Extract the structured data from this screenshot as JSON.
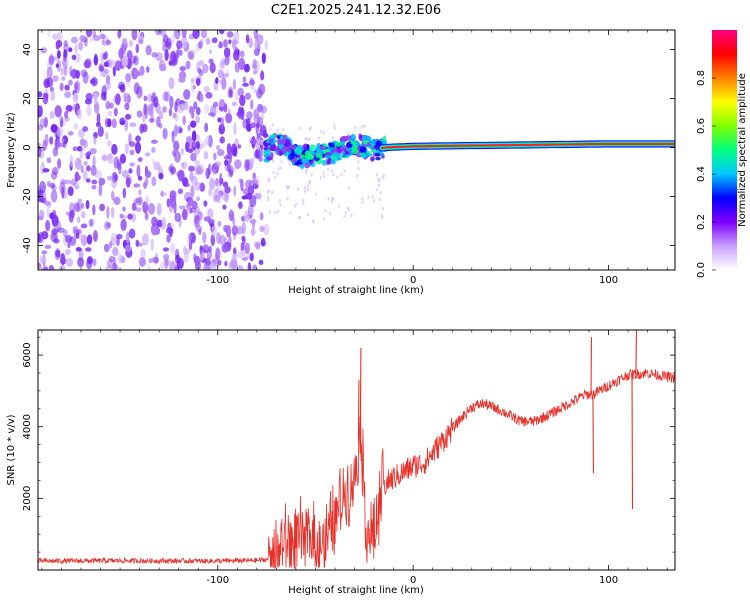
{
  "chart_data": [
    {
      "type": "heatmap",
      "title": "C2E1.2025.241.12.32.E06",
      "xlabel": "Height of straight line (km)",
      "ylabel": "Frequency (Hz)",
      "xlim": [
        -192,
        134
      ],
      "ylim": [
        -50,
        48
      ],
      "xticks": [
        -100,
        0,
        100
      ],
      "xtick_labels": [
        "-100",
        "0",
        "100"
      ],
      "yticks": [
        -40,
        -20,
        0,
        20,
        40
      ],
      "ytick_labels": [
        "-40",
        "-20",
        "0",
        "20",
        "40"
      ],
      "noise_region_x": [
        -192,
        -75
      ],
      "signal_center_freq": [
        {
          "x": -75,
          "freq": -2
        },
        {
          "x": -70,
          "freq": 2
        },
        {
          "x": -65,
          "freq": 0
        },
        {
          "x": -58,
          "freq": -4
        },
        {
          "x": -50,
          "freq": -3
        },
        {
          "x": -42,
          "freq": -2
        },
        {
          "x": -35,
          "freq": 0
        },
        {
          "x": -28,
          "freq": 1
        },
        {
          "x": -20,
          "freq": -1
        },
        {
          "x": -15,
          "freq": 0
        },
        {
          "x": 0,
          "freq": 0.5
        },
        {
          "x": 50,
          "freq": 1
        },
        {
          "x": 100,
          "freq": 1.5
        },
        {
          "x": 134,
          "freq": 1.5
        }
      ],
      "colorbar": {
        "label": "Normalized spectral amplitude",
        "range": [
          0,
          1
        ],
        "ticks": [
          0.0,
          0.2,
          0.4,
          0.6,
          0.8
        ],
        "tick_labels": [
          "0.0",
          "0.2",
          "0.4",
          "0.6",
          "0.8"
        ],
        "colors": [
          "#ffffff",
          "#c8a0ff",
          "#8000ff",
          "#0000ff",
          "#00c8ff",
          "#00ff80",
          "#80ff00",
          "#ffff00",
          "#ff8000",
          "#ff0000",
          "#ff0080"
        ]
      }
    },
    {
      "type": "line",
      "xlabel": "Height of straight line (km)",
      "ylabel": "SNR (10 * v/v)",
      "xlim": [
        -192,
        134
      ],
      "ylim": [
        0,
        6700
      ],
      "xticks": [
        -100,
        0,
        100
      ],
      "xtick_labels": [
        "-100",
        "0",
        "100"
      ],
      "yticks": [
        2000,
        4000,
        6000
      ],
      "ytick_labels": [
        "2000",
        "4000",
        "6000"
      ],
      "series": [
        {
          "name": "SNR",
          "color": "#e8302a",
          "points": [
            {
              "x": -192,
              "y": 250
            },
            {
              "x": -150,
              "y": 260
            },
            {
              "x": -100,
              "y": 250
            },
            {
              "x": -80,
              "y": 270
            },
            {
              "x": -73,
              "y": 300
            },
            {
              "x": -68,
              "y": 700
            },
            {
              "x": -60,
              "y": 800
            },
            {
              "x": -52,
              "y": 900
            },
            {
              "x": -45,
              "y": 700
            },
            {
              "x": -40,
              "y": 1400
            },
            {
              "x": -35,
              "y": 2200
            },
            {
              "x": -30,
              "y": 2500
            },
            {
              "x": -27,
              "y": 4200
            },
            {
              "x": -24,
              "y": 1200
            },
            {
              "x": -20,
              "y": 800
            },
            {
              "x": -16,
              "y": 2300
            },
            {
              "x": -12,
              "y": 2500
            },
            {
              "x": -6,
              "y": 2700
            },
            {
              "x": 0,
              "y": 2900
            },
            {
              "x": 6,
              "y": 3000
            },
            {
              "x": 12,
              "y": 3400
            },
            {
              "x": 18,
              "y": 3800
            },
            {
              "x": 24,
              "y": 4200
            },
            {
              "x": 30,
              "y": 4550
            },
            {
              "x": 36,
              "y": 4650
            },
            {
              "x": 45,
              "y": 4450
            },
            {
              "x": 55,
              "y": 4150
            },
            {
              "x": 62,
              "y": 4150
            },
            {
              "x": 70,
              "y": 4350
            },
            {
              "x": 80,
              "y": 4650
            },
            {
              "x": 88,
              "y": 4900
            },
            {
              "x": 92,
              "y": 4900
            },
            {
              "x": 100,
              "y": 5150
            },
            {
              "x": 110,
              "y": 5450
            },
            {
              "x": 120,
              "y": 5500
            },
            {
              "x": 134,
              "y": 5350
            }
          ],
          "spikes": [
            {
              "x": -27,
              "y": 6200
            },
            {
              "x": -28,
              "y": 5300
            },
            {
              "x": 91,
              "y": 6500
            },
            {
              "x": 92,
              "y": 2700
            },
            {
              "x": 112,
              "y": 1700
            },
            {
              "x": 114,
              "y": 6700
            }
          ]
        }
      ]
    }
  ]
}
